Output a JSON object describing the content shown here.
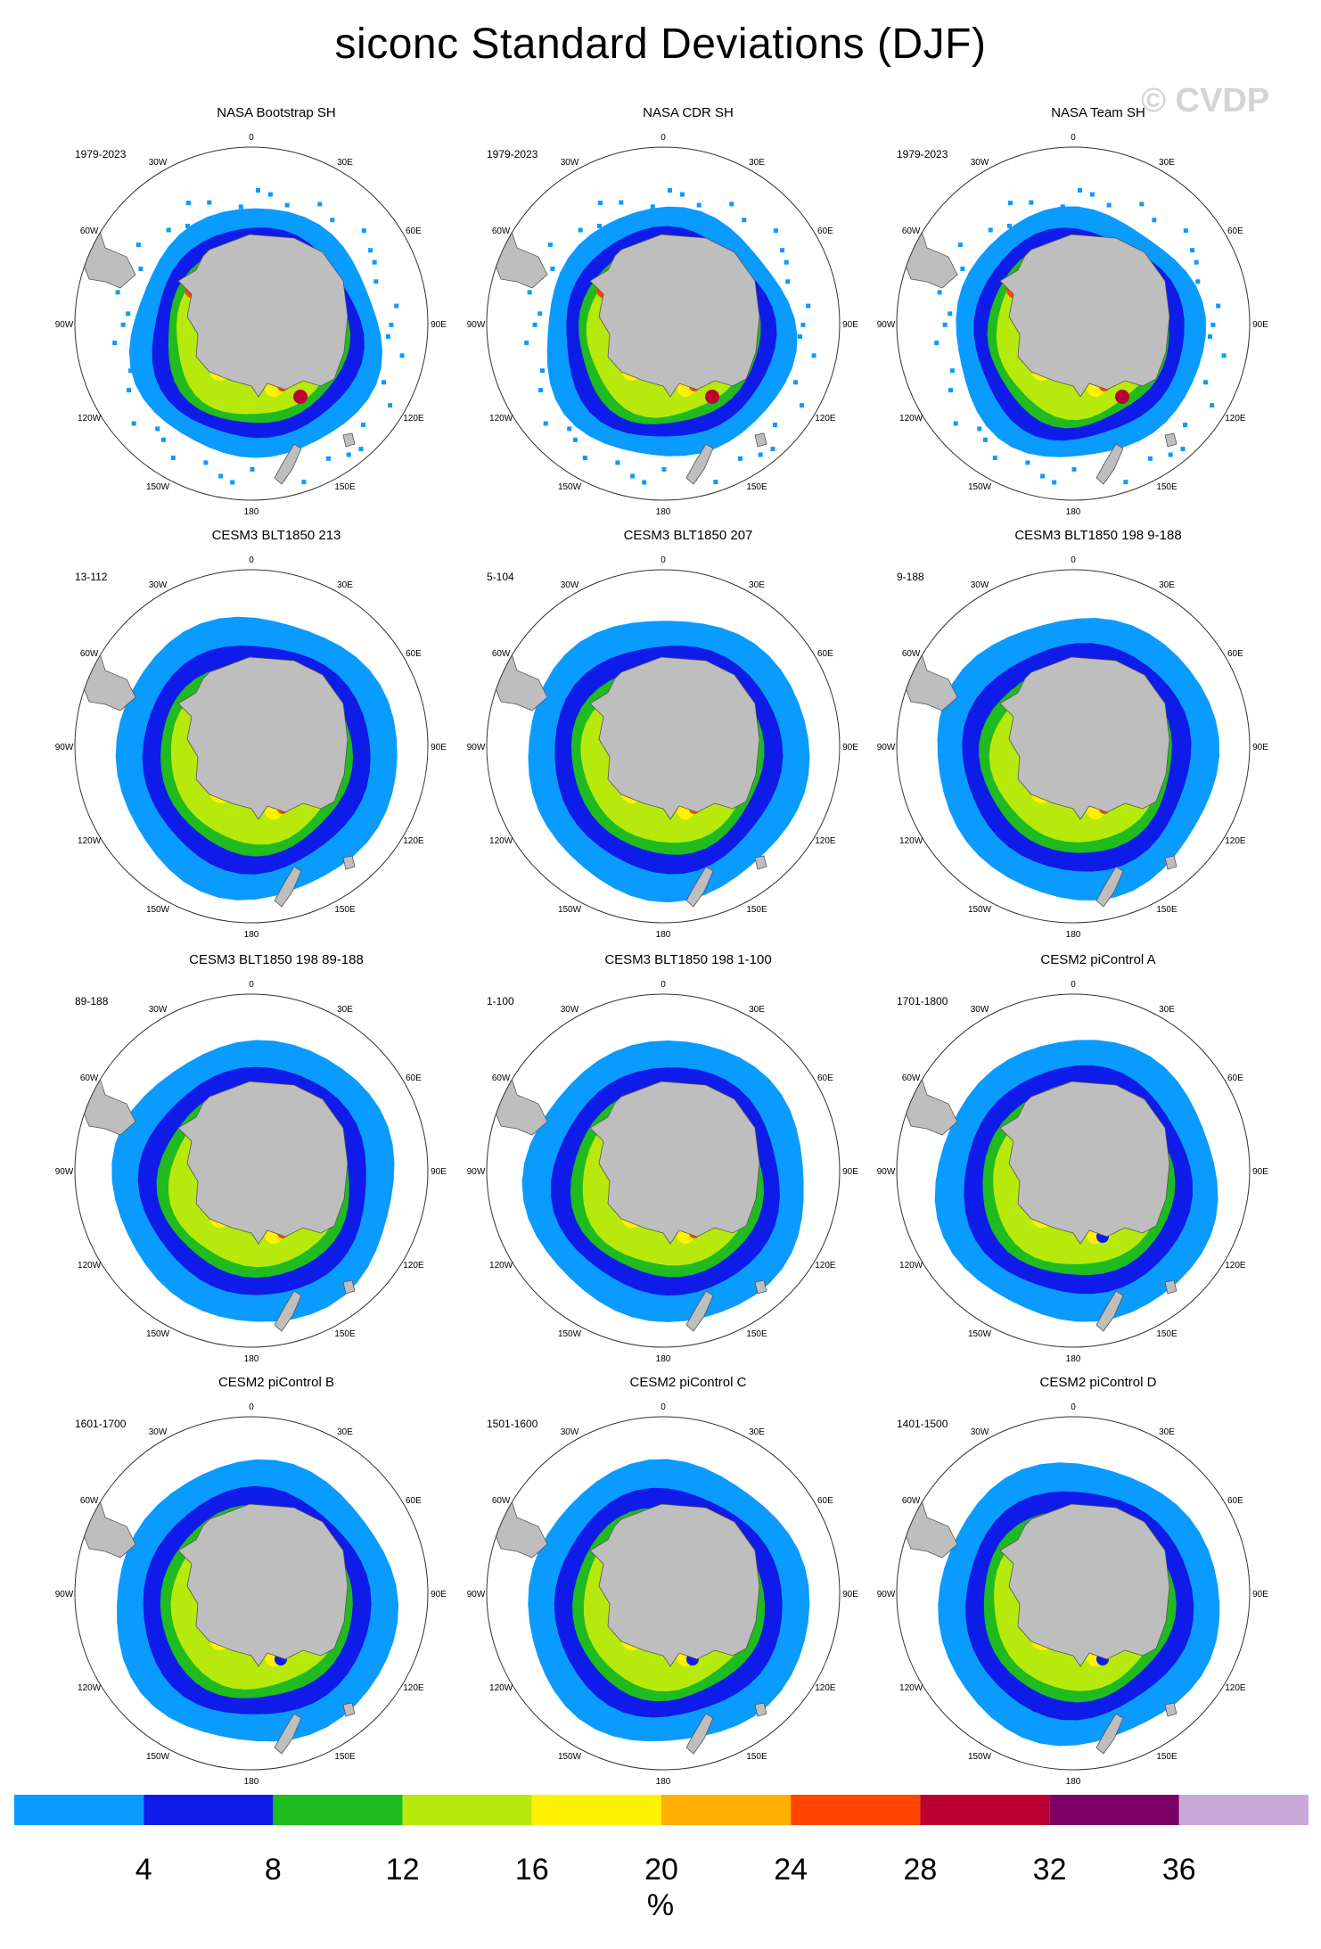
{
  "title": "siconc Standard Deviations (DJF)",
  "watermark": "© CVDP",
  "longitude_labels": [
    "0",
    "30E",
    "60E",
    "90E",
    "120E",
    "150E",
    "180",
    "150W",
    "120W",
    "90W",
    "60W",
    "30W"
  ],
  "panels": [
    {
      "title": "NASA Bootstrap SH",
      "period": "1979-2023",
      "type": "obs",
      "inner_stats": "mixed"
    },
    {
      "title": "NASA CDR SH",
      "period": "1979-2023",
      "type": "obs",
      "inner_stats": "mixed"
    },
    {
      "title": "NASA Team SH",
      "period": "1979-2023",
      "type": "obs",
      "inner_stats": "mixed"
    },
    {
      "title": "CESM3 BLT1850 213",
      "period": "13-112",
      "type": "model",
      "inner_stats": "green"
    },
    {
      "title": "CESM3 BLT1850 207",
      "period": "5-104",
      "type": "model",
      "inner_stats": "green"
    },
    {
      "title": "CESM3 BLT1850 198 9-188",
      "period": "9-188",
      "type": "model",
      "inner_stats": "green"
    },
    {
      "title": "CESM3 BLT1850 198 89-188",
      "period": "89-188",
      "type": "model",
      "inner_stats": "green"
    },
    {
      "title": "CESM3 BLT1850 198 1-100",
      "period": "1-100",
      "type": "model",
      "inner_stats": "green"
    },
    {
      "title": "CESM2 piControl A",
      "period": "1701-1800",
      "type": "model",
      "inner_stats": "blue"
    },
    {
      "title": "CESM2 piControl B",
      "period": "1601-1700",
      "type": "model",
      "inner_stats": "blue"
    },
    {
      "title": "CESM2 piControl C",
      "period": "1501-1600",
      "type": "model",
      "inner_stats": "blue"
    },
    {
      "title": "CESM2 piControl D",
      "period": "1401-1500",
      "type": "model",
      "inner_stats": "blue"
    }
  ],
  "colorbar": {
    "colors": [
      "#0a9bff",
      "#0f1be8",
      "#1fbb1f",
      "#b7ea0c",
      "#fff200",
      "#ffb000",
      "#ff4500",
      "#bd0032",
      "#7d0066",
      "#c8a8d8"
    ],
    "labels": [
      "4",
      "8",
      "12",
      "16",
      "20",
      "24",
      "28",
      "32",
      "36"
    ],
    "units": "%"
  },
  "map_colors": {
    "land": "#bebebe",
    "land_outline": "#555555",
    "ring": "#333333",
    "background": "#ffffff"
  }
}
